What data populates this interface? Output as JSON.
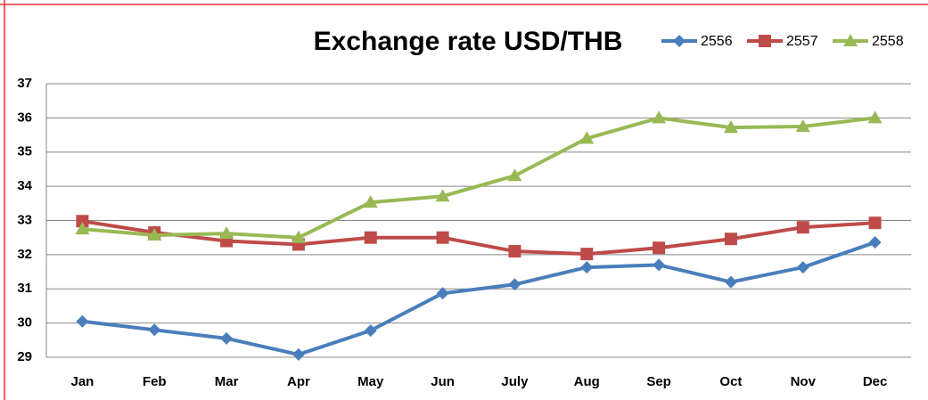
{
  "chart_data": {
    "type": "line",
    "title": "Exchange rate USD/THB",
    "categories": [
      "Jan",
      "Feb",
      "Mar",
      "Apr",
      "May",
      "Jun",
      "July",
      "Aug",
      "Sep",
      "Oct",
      "Nov",
      "Dec"
    ],
    "series": [
      {
        "name": "2556",
        "color": "#4a7ebb",
        "marker": "diamond",
        "values": [
          30.05,
          29.8,
          29.55,
          29.08,
          29.78,
          30.87,
          31.13,
          31.63,
          31.7,
          31.2,
          31.63,
          32.36
        ]
      },
      {
        "name": "2557",
        "color": "#be4b48",
        "marker": "square",
        "values": [
          32.98,
          32.65,
          32.4,
          32.3,
          32.5,
          32.5,
          32.1,
          32.02,
          32.2,
          32.46,
          32.8,
          32.93
        ]
      },
      {
        "name": "2558",
        "color": "#98b954",
        "marker": "triangle",
        "values": [
          32.75,
          32.57,
          32.62,
          32.5,
          33.53,
          33.71,
          34.31,
          35.4,
          36.0,
          35.72,
          35.75,
          36.0
        ]
      }
    ],
    "ylim": [
      29,
      37
    ],
    "yticks": [
      29,
      30,
      31,
      32,
      33,
      34,
      35,
      36,
      37
    ],
    "grid": true,
    "legend": "top-right"
  }
}
